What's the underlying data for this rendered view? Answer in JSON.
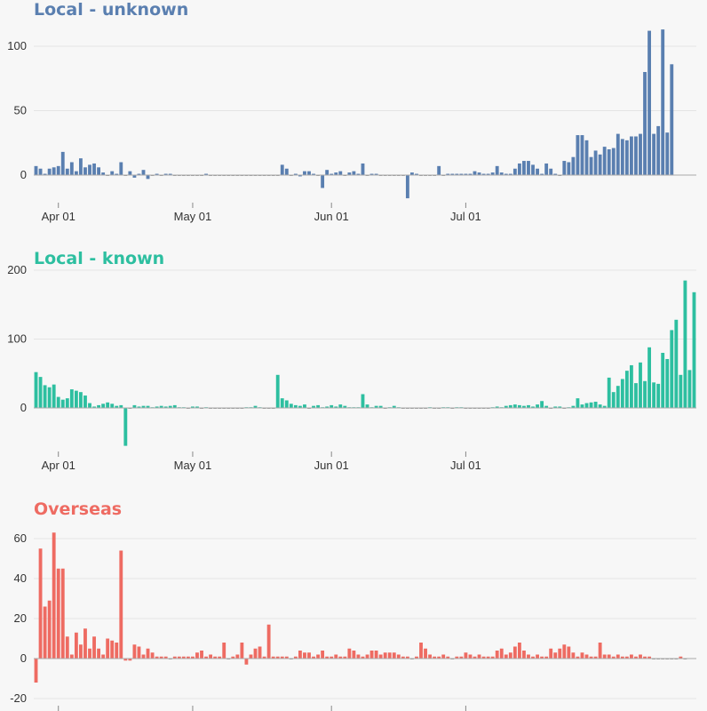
{
  "chart_data": [
    {
      "type": "bar",
      "title": "Local - unknown",
      "color": "#5a7fb0",
      "x_start": "2020-03-27",
      "yticks": [
        0,
        50,
        100
      ],
      "ylim": [
        -18,
        115
      ],
      "xticks": [
        "Apr 01",
        "May 01",
        "Jun 01",
        "Jul 01"
      ],
      "grid": true,
      "values": [
        7,
        5,
        1,
        5,
        6,
        7,
        18,
        5,
        10,
        3,
        13,
        6,
        8,
        9,
        6,
        2,
        0,
        3,
        1,
        10,
        0,
        3,
        -2,
        1,
        4,
        -3,
        0,
        1,
        0,
        1,
        1,
        0,
        0,
        0,
        0,
        0,
        0,
        0,
        1,
        0,
        0,
        0,
        0,
        0,
        0,
        0,
        0,
        0,
        0,
        0,
        0,
        0,
        0,
        0,
        0,
        8,
        5,
        0,
        1,
        -1,
        3,
        3,
        1,
        0,
        -10,
        4,
        1,
        2,
        3,
        0,
        2,
        3,
        1,
        9,
        0,
        1,
        1,
        0,
        0,
        0,
        0,
        0,
        0,
        -18,
        2,
        1,
        0,
        0,
        0,
        0,
        7,
        0,
        1,
        1,
        1,
        1,
        1,
        1,
        3,
        2,
        1,
        1,
        2,
        7,
        2,
        1,
        1,
        5,
        9,
        11,
        11,
        8,
        5,
        1,
        9,
        5,
        1,
        0,
        11,
        10,
        14,
        31,
        31,
        27,
        14,
        19,
        16,
        22,
        20,
        21,
        32,
        28,
        27,
        30,
        30,
        32,
        80,
        112,
        32,
        38,
        113,
        33,
        86
      ]
    },
    {
      "type": "bar",
      "title": "Local - known",
      "color": "#2dbfa0",
      "x_start": "2020-03-27",
      "yticks": [
        0,
        100,
        200
      ],
      "ylim": [
        -60,
        190
      ],
      "xticks": [
        "Apr 01",
        "May 01",
        "Jun 01",
        "Jul 01"
      ],
      "grid": true,
      "values": [
        52,
        45,
        33,
        30,
        34,
        16,
        12,
        14,
        27,
        25,
        23,
        18,
        7,
        2,
        4,
        6,
        8,
        6,
        3,
        4,
        -55,
        0,
        4,
        2,
        3,
        3,
        1,
        2,
        3,
        2,
        3,
        4,
        1,
        1,
        0,
        2,
        2,
        0,
        1,
        0,
        0,
        0,
        0,
        0,
        0,
        0,
        0,
        1,
        1,
        3,
        1,
        0,
        0,
        0,
        48,
        14,
        11,
        6,
        4,
        3,
        5,
        0,
        3,
        4,
        1,
        2,
        4,
        2,
        5,
        3,
        1,
        1,
        1,
        20,
        5,
        1,
        3,
        3,
        0,
        1,
        3,
        1,
        0,
        0,
        0,
        0,
        0,
        0,
        1,
        0,
        0,
        1,
        1,
        0,
        1,
        1,
        0,
        0,
        0,
        0,
        0,
        0,
        1,
        2,
        1,
        3,
        4,
        5,
        4,
        3,
        4,
        2,
        5,
        10,
        3,
        0,
        2,
        2,
        0,
        1,
        3,
        14,
        5,
        7,
        8,
        9,
        5,
        3,
        44,
        23,
        32,
        42,
        54,
        62,
        36,
        66,
        39,
        88,
        37,
        35,
        80,
        71,
        113,
        128,
        48,
        185,
        55,
        168
      ]
    },
    {
      "type": "bar",
      "title": "Overseas",
      "color": "#ee6b62",
      "x_start": "2020-03-27",
      "yticks": [
        -20,
        0,
        20,
        40,
        60
      ],
      "ylim": [
        -22,
        66
      ],
      "xticks": [
        "",
        "",
        "",
        ""
      ],
      "grid": true,
      "values": [
        -12,
        55,
        26,
        29,
        63,
        45,
        45,
        11,
        2,
        13,
        7,
        15,
        5,
        11,
        5,
        2,
        10,
        9,
        8,
        54,
        -1,
        -1,
        7,
        6,
        2,
        5,
        3,
        1,
        1,
        1,
        0,
        1,
        1,
        1,
        1,
        1,
        3,
        4,
        1,
        2,
        1,
        1,
        8,
        0,
        1,
        2,
        8,
        -3,
        2,
        5,
        6,
        1,
        17,
        1,
        1,
        1,
        1,
        0,
        1,
        4,
        3,
        3,
        1,
        2,
        4,
        1,
        1,
        2,
        1,
        1,
        5,
        4,
        2,
        1,
        2,
        4,
        4,
        2,
        3,
        3,
        3,
        2,
        1,
        1,
        0,
        1,
        8,
        5,
        2,
        1,
        1,
        2,
        1,
        0,
        1,
        1,
        3,
        2,
        1,
        2,
        1,
        1,
        1,
        4,
        5,
        2,
        3,
        6,
        8,
        4,
        2,
        1,
        2,
        1,
        1,
        5,
        3,
        5,
        7,
        6,
        3,
        1,
        3,
        2,
        1,
        1,
        8,
        2,
        2,
        1,
        2,
        1,
        1,
        2,
        1,
        2,
        1,
        1,
        0,
        0,
        0,
        0,
        0,
        0,
        1,
        0
      ]
    }
  ]
}
